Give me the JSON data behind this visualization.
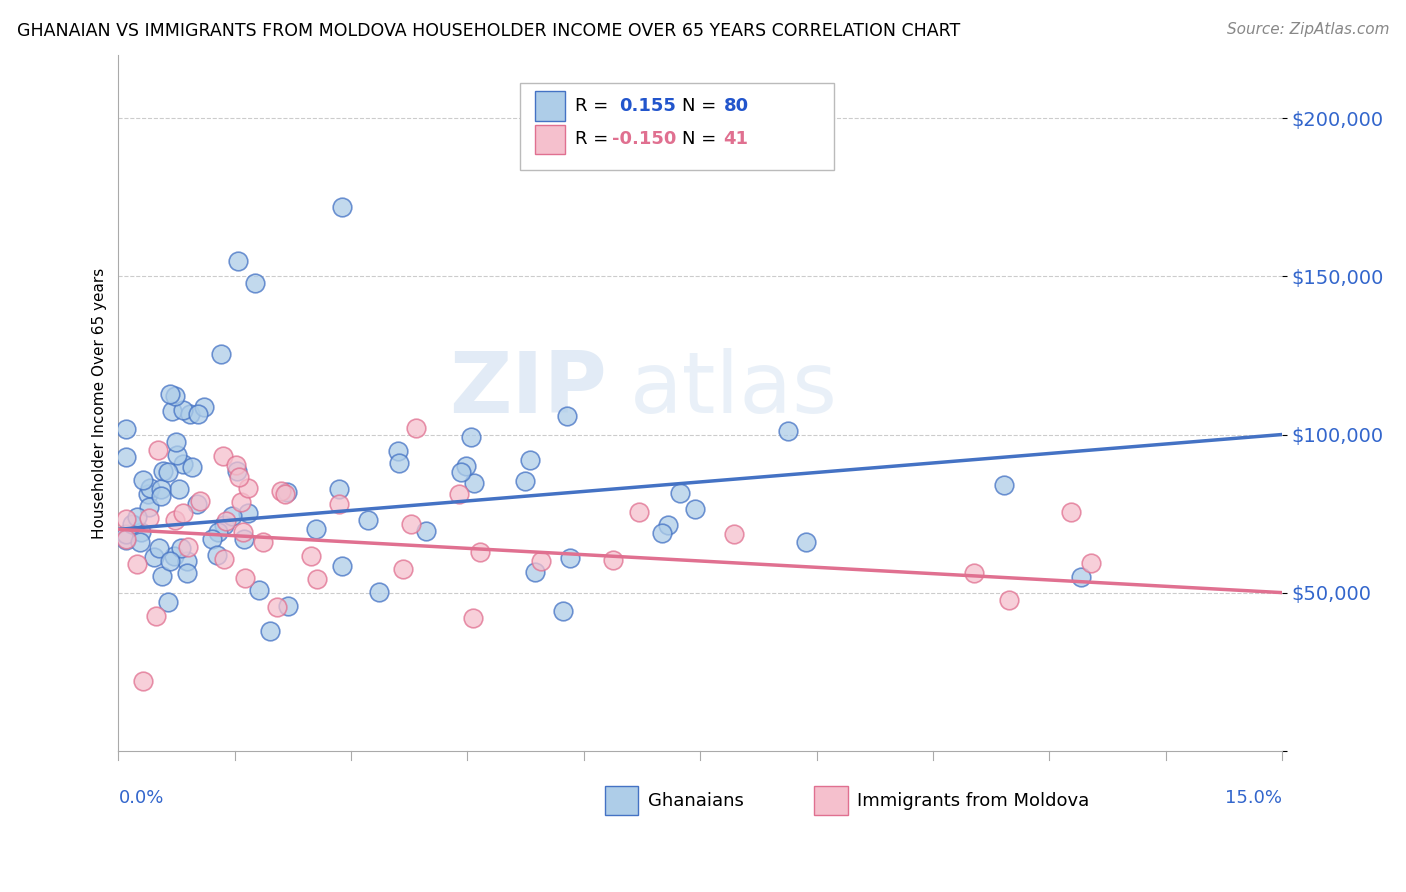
{
  "title": "GHANAIAN VS IMMIGRANTS FROM MOLDOVA HOUSEHOLDER INCOME OVER 65 YEARS CORRELATION CHART",
  "source": "Source: ZipAtlas.com",
  "ylabel": "Householder Income Over 65 years",
  "xmin": 0.0,
  "xmax": 0.15,
  "ymin": 0,
  "ymax": 220000,
  "yticks": [
    0,
    50000,
    100000,
    150000,
    200000
  ],
  "ytick_labels": [
    "",
    "$50,000",
    "$100,000",
    "$150,000",
    "$200,000"
  ],
  "watermark_zip": "ZIP",
  "watermark_atlas": "atlas",
  "color_blue_fill": "#aecde8",
  "color_pink_fill": "#f5c0cd",
  "color_blue_edge": "#4472c4",
  "color_pink_edge": "#e07090",
  "color_text_blue": "#2255cc",
  "color_text_pink": "#e07090",
  "color_yticklabel": "#3366cc",
  "grid_color": "#cccccc",
  "ghana_line_y0": 70000,
  "ghana_line_y1": 100000,
  "moldova_line_y0": 70000,
  "moldova_line_y1": 50000,
  "legend_r1": "R =",
  "legend_v1": "0.155",
  "legend_n1_label": "N =",
  "legend_n1": "80",
  "legend_r2": "R =",
  "legend_v2": "-0.150",
  "legend_n2_label": "N =",
  "legend_n2": "41",
  "bottom_label1": "Ghanaians",
  "bottom_label2": "Immigrants from Moldova"
}
